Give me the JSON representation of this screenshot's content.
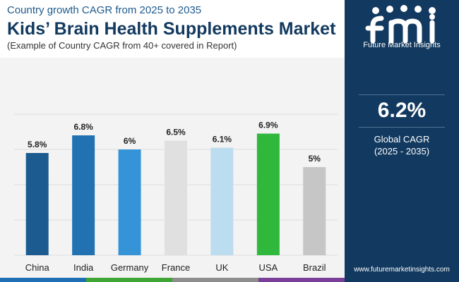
{
  "header": {
    "subtitle": "Country growth CAGR from 2025 to 2035",
    "title": "Kids’ Brain Health Supplements Market",
    "note": "(Example of Country CAGR from 40+ covered in Report)"
  },
  "sidebar": {
    "logo_text": "Future Market Insights",
    "cagr_value": "6.2%",
    "cagr_label": "Global CAGR",
    "cagr_period": "(2025 - 2035)",
    "website": "www.futuremarketinsights.com"
  },
  "colors": {
    "navy": "#12395f",
    "strip": [
      "#1f6fb4",
      "#3fa535",
      "#8e8e8e",
      "#7b3f99"
    ]
  },
  "chart_data": {
    "type": "bar",
    "categories": [
      "China",
      "India",
      "Germany",
      "France",
      "UK",
      "USA",
      "Brazil"
    ],
    "values": [
      5.8,
      6.8,
      6.0,
      6.5,
      6.1,
      6.9,
      5.0
    ],
    "data_labels": [
      "5.8%",
      "6.8%",
      "6%",
      "6.5%",
      "6.1%",
      "6.9%",
      "5%"
    ],
    "colors": [
      "#1b5b8f",
      "#2271b1",
      "#3593d8",
      "#e0e0e0",
      "#bcdcf0",
      "#2fb83b",
      "#c6c6c6"
    ],
    "ylim": [
      0,
      8
    ],
    "grid": true,
    "legend": "none"
  }
}
